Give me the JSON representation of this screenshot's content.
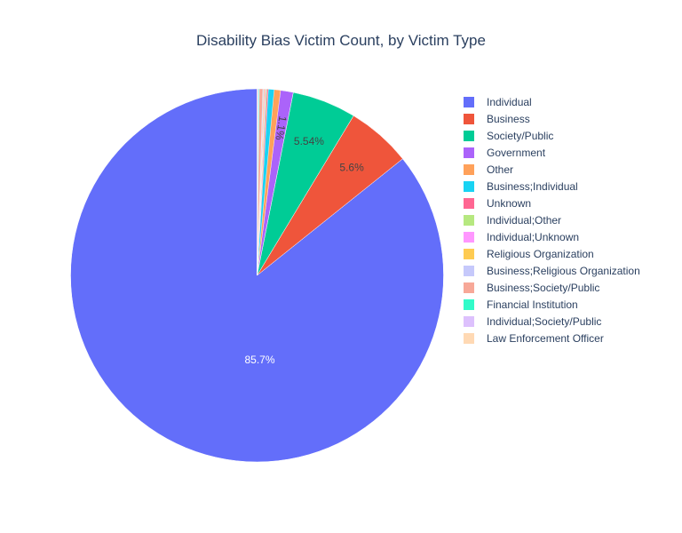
{
  "chart_data": {
    "type": "pie",
    "title": "Disability Bias Victim Count, by Victim Type",
    "slices": [
      {
        "label": "Individual",
        "percent": 85.7,
        "text": "85.7%",
        "color": "#636efa",
        "text_color": "#ffffff"
      },
      {
        "label": "Business",
        "percent": 5.6,
        "text": "5.6%",
        "color": "#ef553b",
        "text_color": "#444444"
      },
      {
        "label": "Society/Public",
        "percent": 5.54,
        "text": "5.54%",
        "color": "#00cc96",
        "text_color": "#444444"
      },
      {
        "label": "Government",
        "percent": 1.1,
        "text": "1.1%",
        "color": "#ab63fa",
        "text_color": "#444444"
      },
      {
        "label": "Other",
        "percent": 0.55,
        "text": "",
        "color": "#ffa15a",
        "text_color": "#444444"
      },
      {
        "label": "Business;Individual",
        "percent": 0.5,
        "text": "",
        "color": "#19d3f3",
        "text_color": "#444444"
      },
      {
        "label": "Unknown",
        "percent": 0.12,
        "text": "",
        "color": "#ff6692",
        "text_color": "#444444"
      },
      {
        "label": "Individual;Other",
        "percent": 0.1,
        "text": "",
        "color": "#b6e880",
        "text_color": "#444444"
      },
      {
        "label": "Individual;Unknown",
        "percent": 0.09,
        "text": "",
        "color": "#ff97ff",
        "text_color": "#444444"
      },
      {
        "label": "Religious Organization",
        "percent": 0.08,
        "text": "",
        "color": "#fecb52",
        "text_color": "#444444"
      },
      {
        "label": "Business;Religious Organization",
        "percent": 0.08,
        "text": "",
        "color": "#c6c9fb",
        "text_color": "#444444"
      },
      {
        "label": "Business;Society/Public",
        "percent": 0.3,
        "text": "",
        "color": "#f7a898",
        "text_color": "#444444"
      },
      {
        "label": "Financial Institution",
        "percent": 0.07,
        "text": "",
        "color": "#32fbc9",
        "text_color": "#444444"
      },
      {
        "label": "Individual;Society/Public",
        "percent": 0.06,
        "text": "",
        "color": "#ddc1fd",
        "text_color": "#444444"
      },
      {
        "label": "Law Enforcement Officer",
        "percent": 0.06,
        "text": "",
        "color": "#ffd9b4",
        "text_color": "#444444"
      }
    ],
    "direction": "clockwise",
    "start": "top",
    "legend_position": "right"
  }
}
